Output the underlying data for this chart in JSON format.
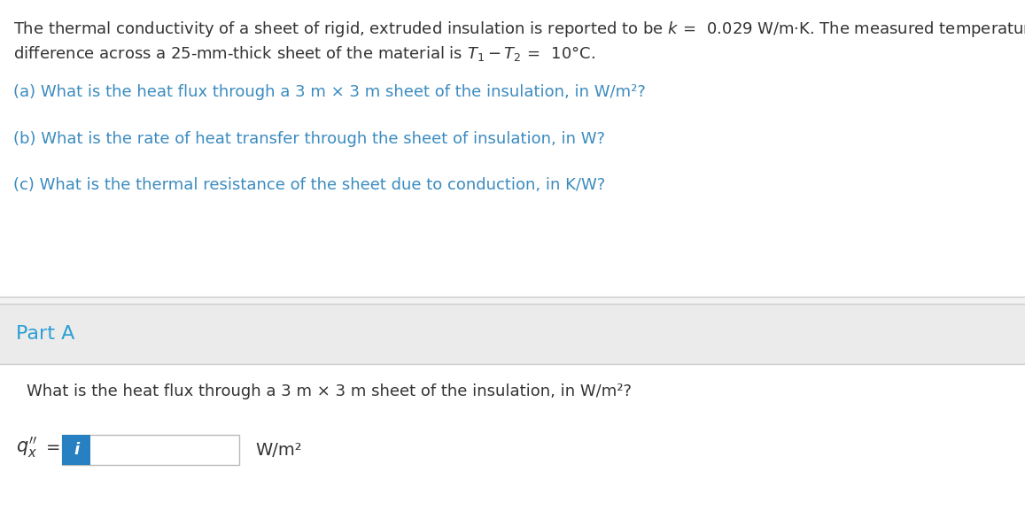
{
  "bg_top": "#ffffff",
  "bg_bottom": "#f2f2f2",
  "text_color_main": "#333333",
  "text_color_teal": "#3b8bbf",
  "text_color_blue_part": "#2e9fd4",
  "input_box_color": "#ffffff",
  "input_border_color": "#bbbbbb",
  "icon_bg_color": "#2680c2",
  "icon_text_color": "#ffffff",
  "divider_color": "#cccccc",
  "part_a_bg": "#ebebeb",
  "line1": "The thermal conductivity of a sheet of rigid, extruded insulation is reported to be $k\\,=\\,$ 0.029 W/m·K. The measured temperature",
  "line2": "difference across a 25-mm-thick sheet of the material is $T_1 - T_2\\,=\\,$ 10°C.",
  "line_a": "(a) What is the heat flux through a 3 m × 3 m sheet of the insulation, in W/m²?",
  "line_b": "(b) What is the rate of heat transfer through the sheet of insulation, in W?",
  "line_c": "(c) What is the thermal resistance of the sheet due to conduction, in K/W?",
  "part_a_label": "Part A",
  "part_a_question": "What is the heat flux through a 3 m × 3 m sheet of the insulation, in W/m²?",
  "part_a_unit": "W/m²",
  "font_size_main": 13,
  "font_size_part_a": 16
}
